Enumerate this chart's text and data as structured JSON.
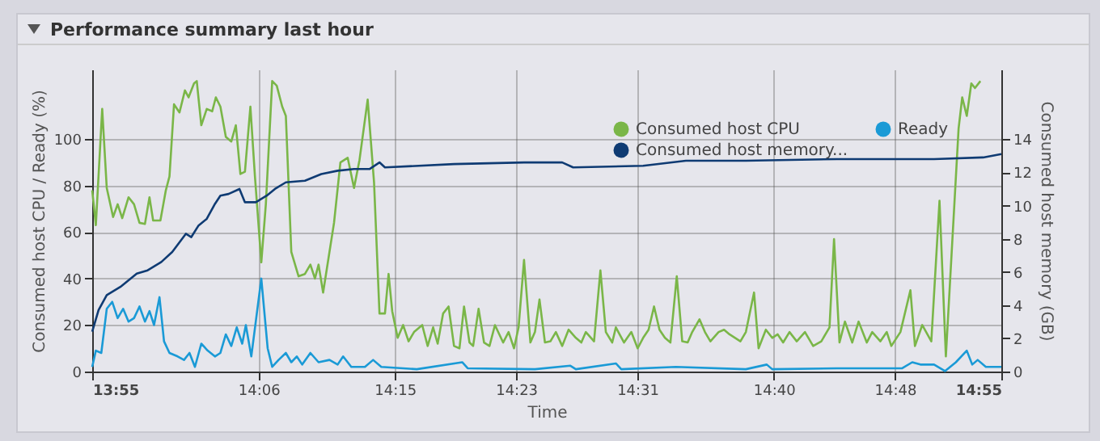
{
  "chart_data": {
    "type": "line",
    "title": "Performance summary last hour",
    "xlabel": "Time",
    "ylabel": "Consumed host CPU / Ready (%)",
    "y2label": "Consumed host memory (GB)",
    "xlim": [
      13.917,
      14.917
    ],
    "xticks": [
      {
        "value": 13.917,
        "label": "13:55"
      },
      {
        "value": 14.1,
        "label": "14:06"
      },
      {
        "value": 14.25,
        "label": "14:15"
      },
      {
        "value": 14.3833,
        "label": "14:23"
      },
      {
        "value": 14.5167,
        "label": "14:31"
      },
      {
        "value": 14.6667,
        "label": "14:40"
      },
      {
        "value": 14.8,
        "label": "14:48"
      },
      {
        "value": 14.917,
        "label": "14:55"
      }
    ],
    "ylim": [
      0,
      130
    ],
    "yticks": [
      0,
      20,
      40,
      60,
      80,
      100
    ],
    "y2lim": [
      0,
      18.2
    ],
    "y2ticks": [
      0,
      2,
      4,
      6,
      8,
      10,
      12,
      14
    ],
    "grid": true,
    "legend": "top right",
    "marker": "none",
    "series": [
      {
        "name": "Consumed host CPU",
        "color": "#7ab648",
        "x": [
          13.917,
          13.921,
          13.928,
          13.933,
          13.94,
          13.945,
          13.95,
          13.957,
          13.963,
          13.969,
          13.975,
          13.98,
          13.984,
          13.992,
          13.998,
          14.002,
          14.007,
          14.013,
          14.019,
          14.023,
          14.029,
          14.032,
          14.037,
          14.043,
          14.049,
          14.053,
          14.058,
          14.064,
          14.07,
          14.075,
          14.08,
          14.085,
          14.091,
          14.096,
          14.103,
          14.108,
          14.115,
          14.12,
          14.126,
          14.13,
          14.136,
          14.144,
          14.151,
          14.157,
          14.162,
          14.166,
          14.171,
          14.177,
          14.183,
          14.19,
          14.198,
          14.205,
          14.211,
          14.22,
          14.227,
          14.233,
          14.239,
          14.243,
          14.247,
          14.253,
          14.259,
          14.265,
          14.271,
          14.28,
          14.286,
          14.292,
          14.297,
          14.303,
          14.309,
          14.315,
          14.321,
          14.326,
          14.332,
          14.336,
          14.342,
          14.348,
          14.354,
          14.36,
          14.369,
          14.375,
          14.381,
          14.386,
          14.392,
          14.399,
          14.404,
          14.409,
          14.415,
          14.421,
          14.427,
          14.434,
          14.441,
          14.449,
          14.455,
          14.46,
          14.469,
          14.476,
          14.482,
          14.489,
          14.493,
          14.502,
          14.51,
          14.517,
          14.523,
          14.529,
          14.535,
          14.541,
          14.547,
          14.553,
          14.56,
          14.566,
          14.572,
          14.577,
          14.585,
          14.591,
          14.597,
          14.606,
          14.612,
          14.618,
          14.63,
          14.636,
          14.645,
          14.65,
          14.658,
          14.665,
          14.671,
          14.677,
          14.684,
          14.692,
          14.701,
          14.71,
          14.719,
          14.728,
          14.733,
          14.739,
          14.745,
          14.753,
          14.76,
          14.769,
          14.775,
          14.784,
          14.791,
          14.796,
          14.806,
          14.817,
          14.822,
          14.83,
          14.84,
          14.849,
          14.856,
          14.87,
          14.874,
          14.879,
          14.884,
          14.888,
          14.894
        ],
        "values": [
          78,
          63,
          113,
          79,
          66.5,
          72,
          66,
          75,
          72,
          64,
          63.5,
          75,
          65,
          65,
          78,
          84,
          115,
          111.5,
          121,
          118,
          124,
          125,
          106,
          113,
          112,
          118,
          114,
          101,
          99,
          106,
          85,
          86,
          114,
          84,
          47,
          72,
          125,
          123,
          114,
          110,
          51.5,
          41,
          42,
          46,
          40,
          46,
          34,
          49,
          64,
          90,
          92,
          79,
          91,
          117,
          81.5,
          25,
          25,
          42,
          26,
          14.5,
          20,
          13,
          17,
          20,
          11,
          19,
          12,
          25,
          28,
          11,
          10,
          28,
          12.5,
          11,
          27,
          12.5,
          11,
          20,
          12.5,
          17,
          10,
          19,
          48,
          12.5,
          17,
          31,
          12.5,
          13,
          17,
          11,
          18,
          14.5,
          12.5,
          17,
          13,
          43.5,
          17,
          12.5,
          19,
          12.5,
          17,
          10,
          14.5,
          18,
          28,
          18,
          14.5,
          12.5,
          41,
          13,
          12.5,
          17,
          22.5,
          17,
          13,
          17,
          18,
          16,
          13,
          17,
          34,
          10,
          18,
          14.5,
          16,
          12.5,
          17,
          13,
          17,
          11,
          13,
          19,
          57,
          12.5,
          21.5,
          12.5,
          21.5,
          12.5,
          17,
          13,
          17,
          11,
          17,
          35,
          11,
          20,
          13,
          73.5,
          6.5,
          104.6,
          118,
          110,
          124,
          122,
          125
        ]
      },
      {
        "name": "Ready",
        "color": "#1a9ad6",
        "x": [
          13.917,
          13.921,
          13.927,
          13.933,
          13.939,
          13.945,
          13.951,
          13.957,
          13.963,
          13.969,
          13.975,
          13.98,
          13.985,
          13.991,
          13.996,
          14.002,
          14.011,
          14.018,
          14.024,
          14.03,
          14.037,
          14.044,
          14.052,
          14.058,
          14.064,
          14.07,
          14.076,
          14.082,
          14.086,
          14.092,
          14.103,
          14.11,
          14.115,
          14.122,
          14.13,
          14.136,
          14.142,
          14.148,
          14.157,
          14.166,
          14.178,
          14.187,
          14.193,
          14.202,
          14.217,
          14.226,
          14.235,
          14.274,
          14.324,
          14.33,
          14.404,
          14.443,
          14.449,
          14.493,
          14.499,
          14.559,
          14.636,
          14.659,
          14.665,
          14.736,
          14.808,
          14.819,
          14.828,
          14.843,
          14.855,
          14.867,
          14.879,
          14.885,
          14.891,
          14.9,
          14.917
        ],
        "values": [
          2,
          9,
          8,
          27,
          30,
          23,
          27,
          21.5,
          23,
          28,
          21.5,
          26,
          20,
          32,
          13,
          8,
          6.5,
          5,
          8,
          2,
          12,
          9,
          6.5,
          8,
          16,
          11,
          19,
          12,
          20,
          6.5,
          40,
          10,
          2,
          5,
          8,
          4,
          6.5,
          3,
          8,
          4,
          5,
          3,
          6.5,
          2,
          2,
          5,
          2,
          1,
          4,
          1.4,
          1,
          2.5,
          1,
          3.5,
          1,
          2,
          1,
          3,
          1,
          1.4,
          1.4,
          4,
          3,
          3,
          0.2,
          4,
          9,
          3,
          5,
          2,
          2
        ]
      },
      {
        "name": "Consumed host memory...",
        "color": "#0f3b73",
        "axis": "y2",
        "x": [
          13.917,
          13.924,
          13.933,
          13.948,
          13.966,
          13.978,
          13.993,
          14.005,
          14.02,
          14.026,
          14.034,
          14.043,
          14.052,
          14.058,
          14.067,
          14.079,
          14.085,
          14.097,
          14.109,
          14.118,
          14.13,
          14.151,
          14.169,
          14.187,
          14.205,
          14.222,
          14.233,
          14.239,
          14.315,
          14.392,
          14.434,
          14.446,
          14.523,
          14.57,
          14.636,
          14.736,
          14.843,
          14.897,
          14.917
        ],
        "values": [
          2.4,
          3.7,
          4.6,
          5.1,
          5.9,
          6.1,
          6.6,
          7.2,
          8.3,
          8.1,
          8.8,
          9.2,
          10.1,
          10.6,
          10.7,
          11.0,
          10.2,
          10.2,
          10.6,
          11.0,
          11.4,
          11.5,
          11.9,
          12.1,
          12.2,
          12.2,
          12.6,
          12.3,
          12.5,
          12.6,
          12.6,
          12.3,
          12.4,
          12.7,
          12.7,
          12.8,
          12.8,
          12.9,
          13.1
        ]
      }
    ]
  }
}
